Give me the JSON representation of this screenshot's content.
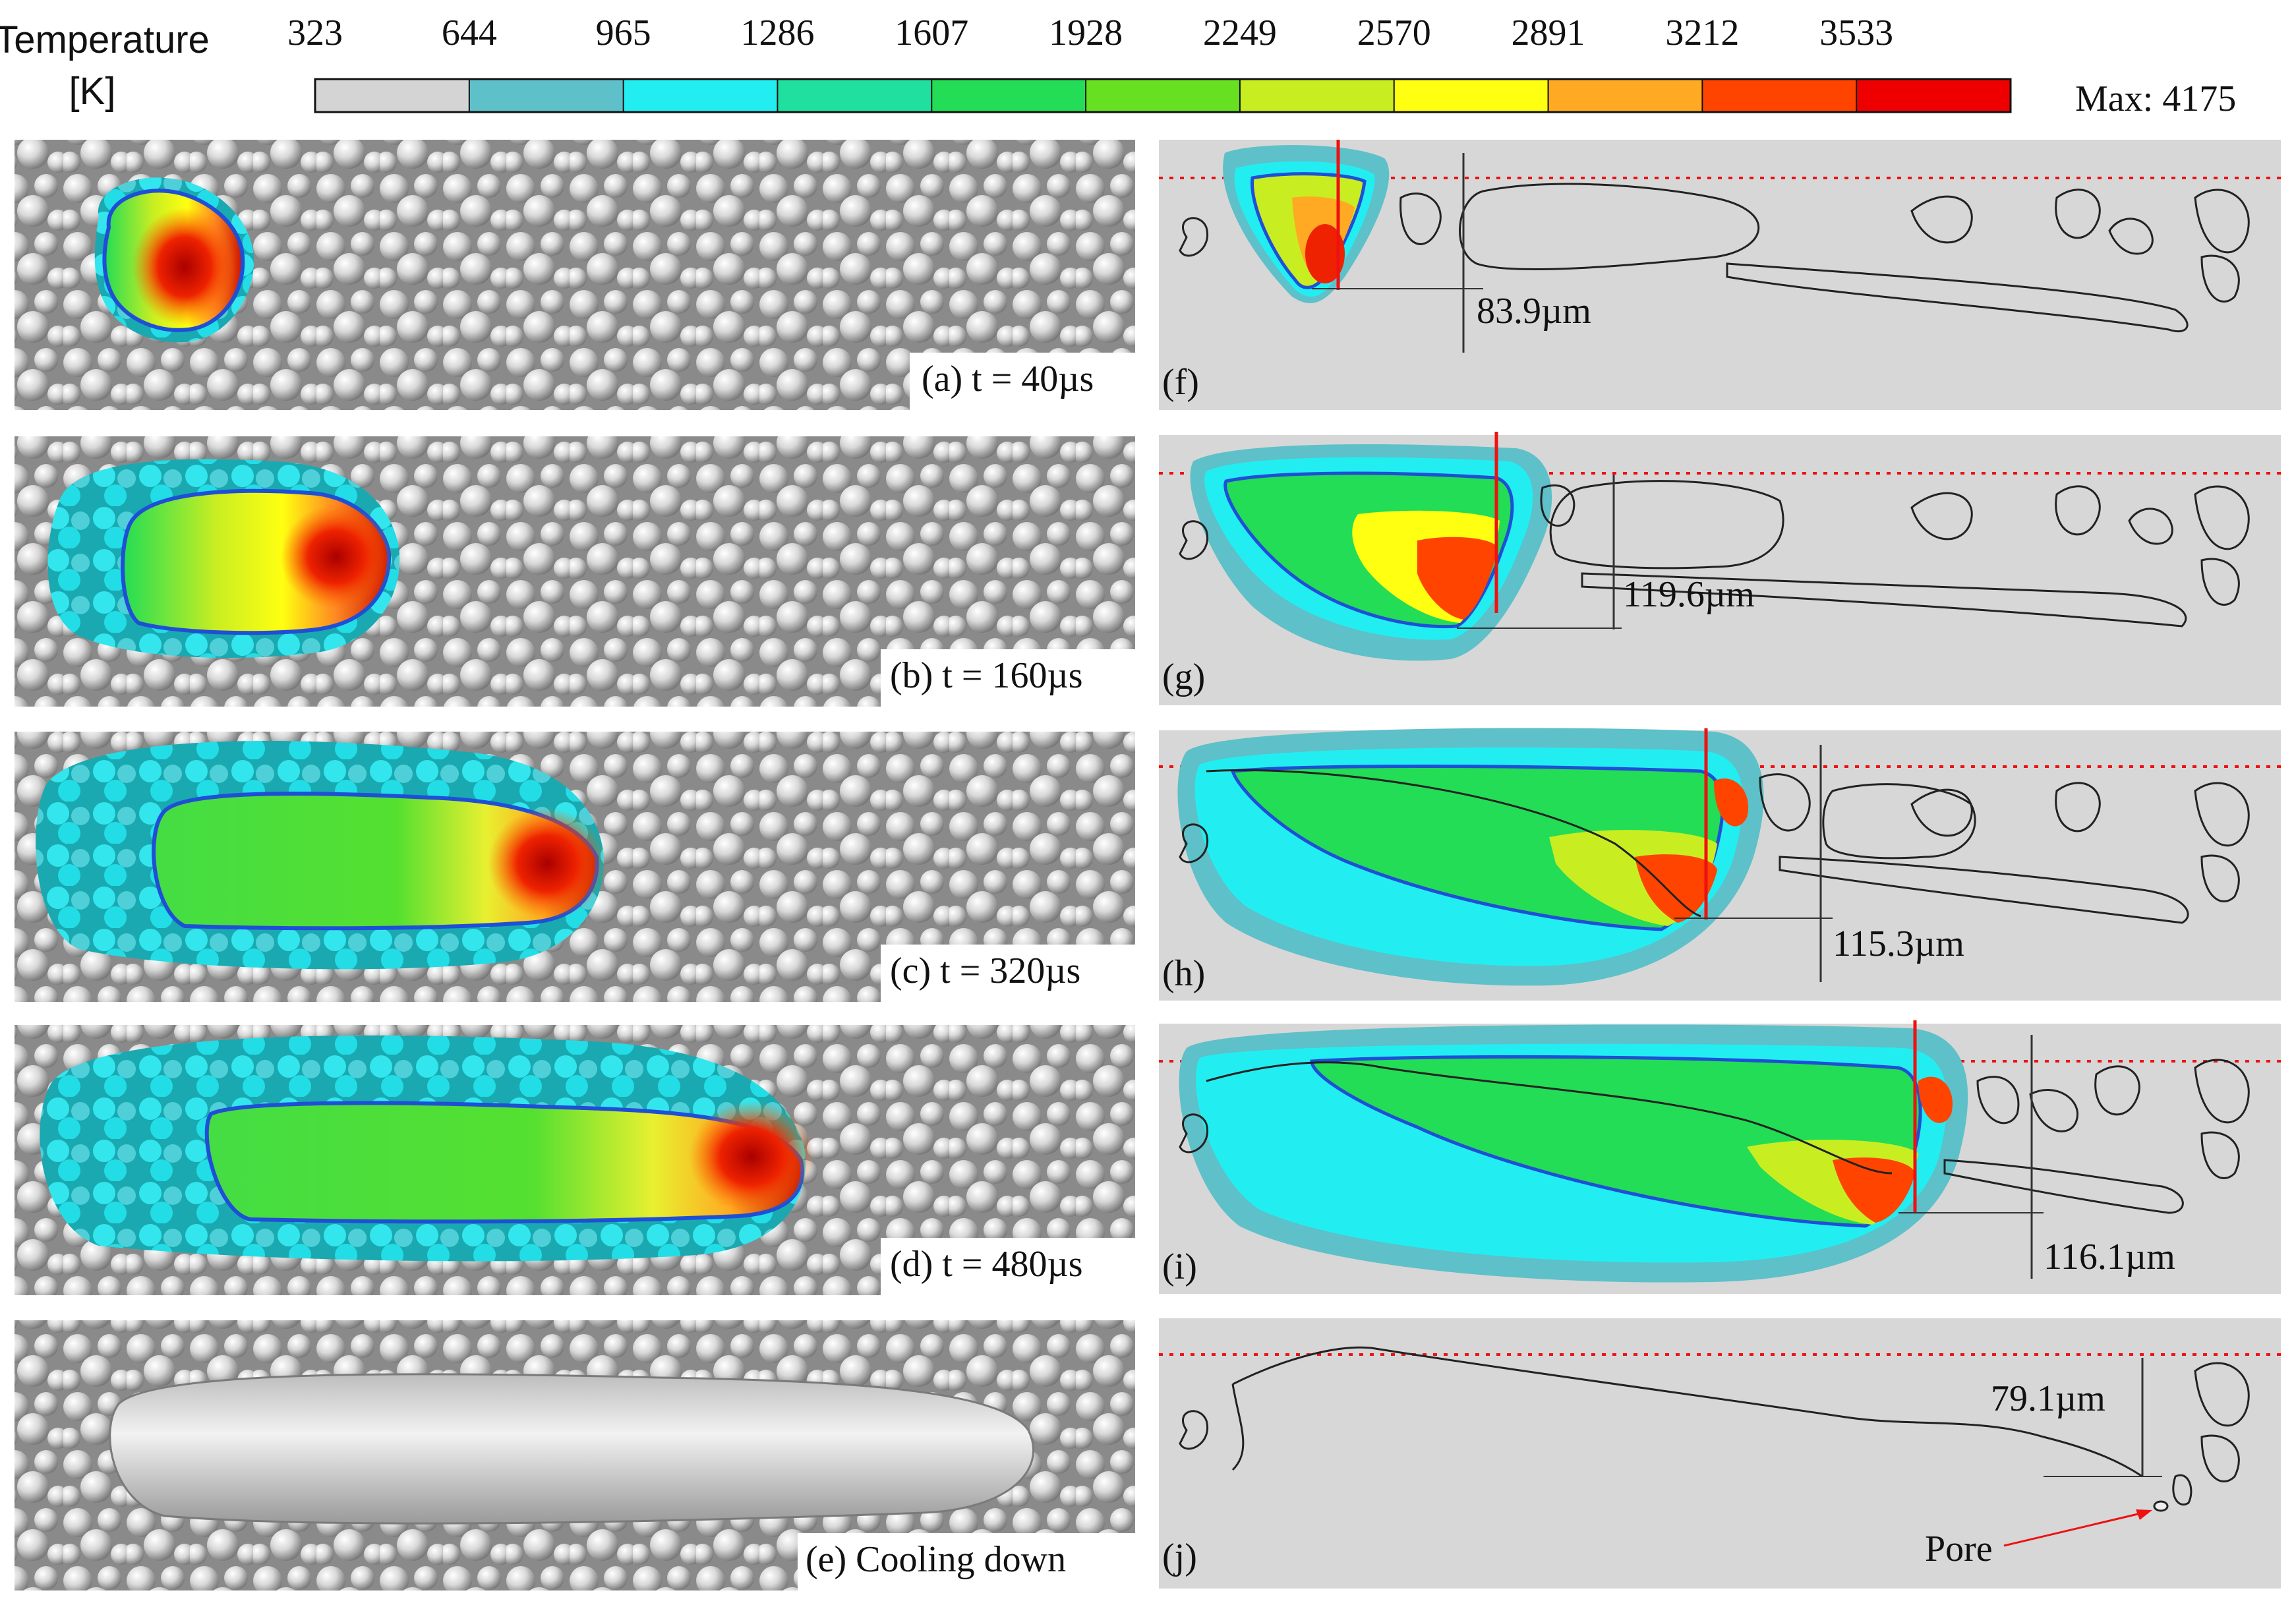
{
  "colorbar": {
    "title_line1": "Temperature",
    "title_line2": "[K]",
    "ticks": [
      "323",
      "644",
      "965",
      "1286",
      "1607",
      "1928",
      "2249",
      "2570",
      "2891",
      "3212",
      "3533"
    ],
    "max_label": "Max: 4175",
    "colors": [
      "#d4d4d4",
      "#5ec0c8",
      "#22eef2",
      "#20e0a0",
      "#22dd55",
      "#66e020",
      "#c8ee22",
      "#ffff11",
      "#ffaa22",
      "#ff4400",
      "#ee0000"
    ]
  },
  "panels_left": [
    {
      "label": "(a) t = 40µs"
    },
    {
      "label": "(b) t = 160µs"
    },
    {
      "label": "(c) t = 320µs"
    },
    {
      "label": "(d) t = 480µs"
    },
    {
      "label": "(e) Cooling down"
    }
  ],
  "panels_right": [
    {
      "label": "(f)",
      "depth": "83.9µm"
    },
    {
      "label": "(g)",
      "depth": "119.6µm"
    },
    {
      "label": "(h)",
      "depth": "115.3µm"
    },
    {
      "label": "(i)",
      "depth": "116.1µm"
    },
    {
      "label": "(j)",
      "depth": "79.1µm",
      "annotation": "Pore"
    }
  ],
  "theme": {
    "powder_bg": "#8c8c8c",
    "section_bg": "#d7d7d7",
    "pool_outline": "#1f4fd6",
    "laser": "#ee1111"
  }
}
